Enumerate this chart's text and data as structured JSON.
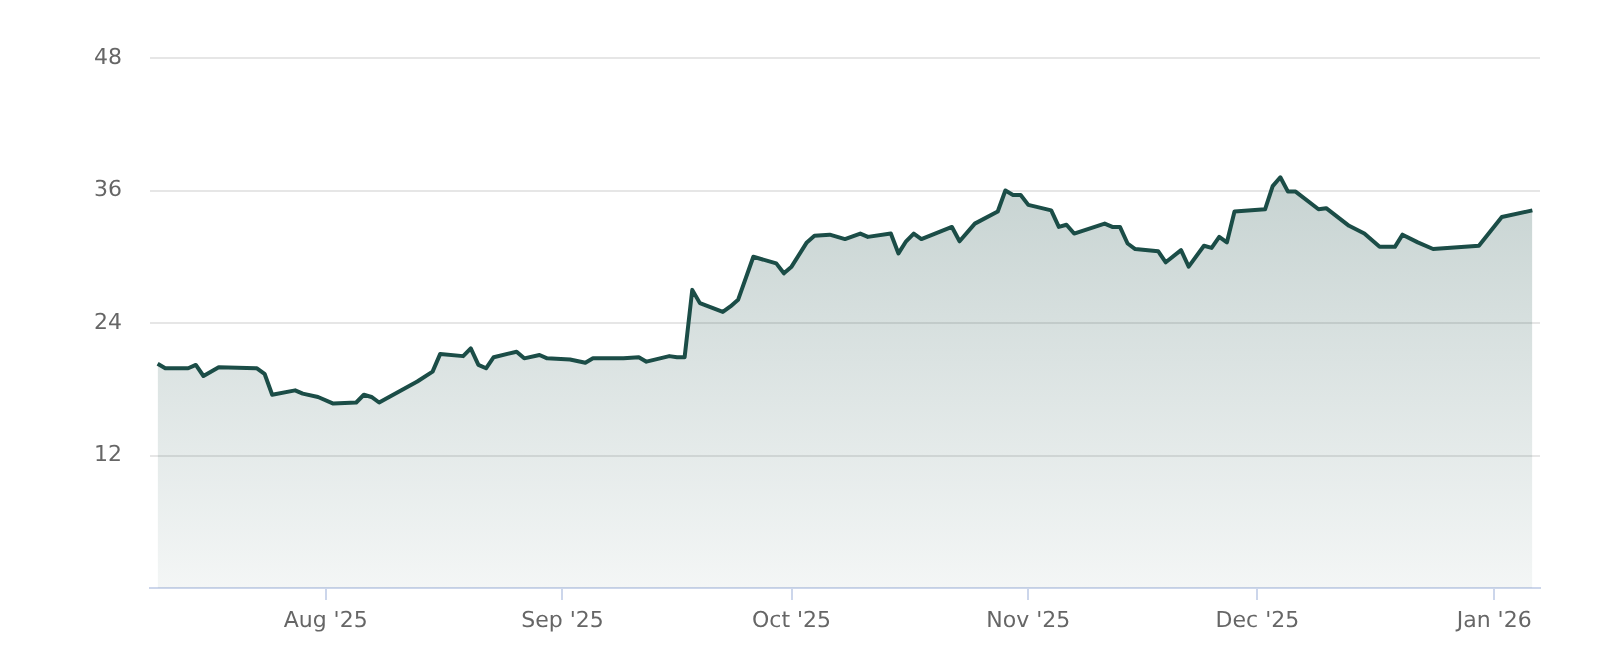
{
  "chart_data": {
    "type": "area",
    "color": "#1b4d47",
    "grid": "y",
    "x": [
      "2025-07-10",
      "2025-07-11",
      "2025-07-14",
      "2025-07-15",
      "2025-07-16",
      "2025-07-18",
      "2025-07-23",
      "2025-07-24",
      "2025-07-25",
      "2025-07-28",
      "2025-07-29",
      "2025-07-31",
      "2025-08-02",
      "2025-08-05",
      "2025-08-06",
      "2025-08-07",
      "2025-08-08",
      "2025-08-13",
      "2025-08-15",
      "2025-08-16",
      "2025-08-19",
      "2025-08-20",
      "2025-08-21",
      "2025-08-22",
      "2025-08-23",
      "2025-08-26",
      "2025-08-27",
      "2025-08-29",
      "2025-08-30",
      "2025-09-02",
      "2025-09-04",
      "2025-09-05",
      "2025-09-09",
      "2025-09-11",
      "2025-09-12",
      "2025-09-15",
      "2025-09-16",
      "2025-09-17",
      "2025-09-18",
      "2025-09-19",
      "2025-09-22",
      "2025-09-23",
      "2025-09-24",
      "2025-09-26",
      "2025-09-29",
      "2025-09-30",
      "2025-10-01",
      "2025-10-03",
      "2025-10-04",
      "2025-10-06",
      "2025-10-08",
      "2025-10-10",
      "2025-10-11",
      "2025-10-14",
      "2025-10-15",
      "2025-10-16",
      "2025-10-17",
      "2025-10-18",
      "2025-10-22",
      "2025-10-23",
      "2025-10-25",
      "2025-10-28",
      "2025-10-29",
      "2025-10-30",
      "2025-10-31",
      "2025-11-01",
      "2025-11-04",
      "2025-11-05",
      "2025-11-06",
      "2025-11-07",
      "2025-11-11",
      "2025-11-12",
      "2025-11-13",
      "2025-11-14",
      "2025-11-15",
      "2025-11-18",
      "2025-11-19",
      "2025-11-21",
      "2025-11-22",
      "2025-11-24",
      "2025-11-25",
      "2025-11-26",
      "2025-11-27",
      "2025-11-28",
      "2025-12-02",
      "2025-12-03",
      "2025-12-04",
      "2025-12-05",
      "2025-12-06",
      "2025-12-09",
      "2025-12-10",
      "2025-12-13",
      "2025-12-15",
      "2025-12-17",
      "2025-12-19",
      "2025-12-20",
      "2025-12-22",
      "2025-12-24",
      "2025-12-30",
      "2026-01-02",
      "2026-01-06"
    ],
    "values": [
      20.3,
      19.9,
      19.9,
      20.2,
      19.2,
      20.0,
      19.9,
      19.4,
      17.5,
      17.9,
      17.6,
      17.3,
      16.7,
      16.8,
      17.5,
      17.3,
      16.8,
      18.7,
      19.6,
      21.2,
      21.0,
      21.7,
      20.2,
      19.9,
      20.9,
      21.4,
      20.8,
      21.1,
      20.8,
      20.7,
      20.4,
      20.8,
      20.8,
      20.9,
      20.5,
      21.0,
      20.9,
      20.9,
      27.0,
      25.8,
      25.0,
      25.5,
      26.1,
      30.0,
      29.4,
      28.5,
      29.1,
      31.3,
      31.9,
      32.0,
      31.6,
      32.1,
      31.8,
      32.1,
      30.3,
      31.4,
      32.1,
      31.6,
      32.7,
      31.4,
      33.0,
      34.1,
      36.0,
      35.6,
      35.6,
      34.7,
      34.2,
      32.7,
      32.9,
      32.1,
      33.0,
      32.7,
      32.7,
      31.2,
      30.7,
      30.5,
      29.5,
      30.6,
      29.1,
      31.0,
      30.8,
      31.8,
      31.3,
      34.1,
      34.3,
      36.4,
      37.2,
      35.9,
      35.9,
      34.3,
      34.4,
      32.8,
      32.1,
      30.9,
      30.9,
      32.0,
      31.3,
      30.7,
      31.0,
      33.6,
      34.2
    ],
    "xlim": [
      "2025-07-09",
      "2026-01-07"
    ],
    "xticks": [
      {
        "value": "2025-08-01",
        "label": "Aug '25"
      },
      {
        "value": "2025-09-01",
        "label": "Sep '25"
      },
      {
        "value": "2025-10-01",
        "label": "Oct '25"
      },
      {
        "value": "2025-11-01",
        "label": "Nov '25"
      },
      {
        "value": "2025-12-01",
        "label": "Dec '25"
      },
      {
        "value": "2026-01-01",
        "label": "Jan '26"
      }
    ],
    "ylim": [
      0,
      48
    ],
    "yticks": [
      12,
      24,
      36,
      48
    ]
  }
}
